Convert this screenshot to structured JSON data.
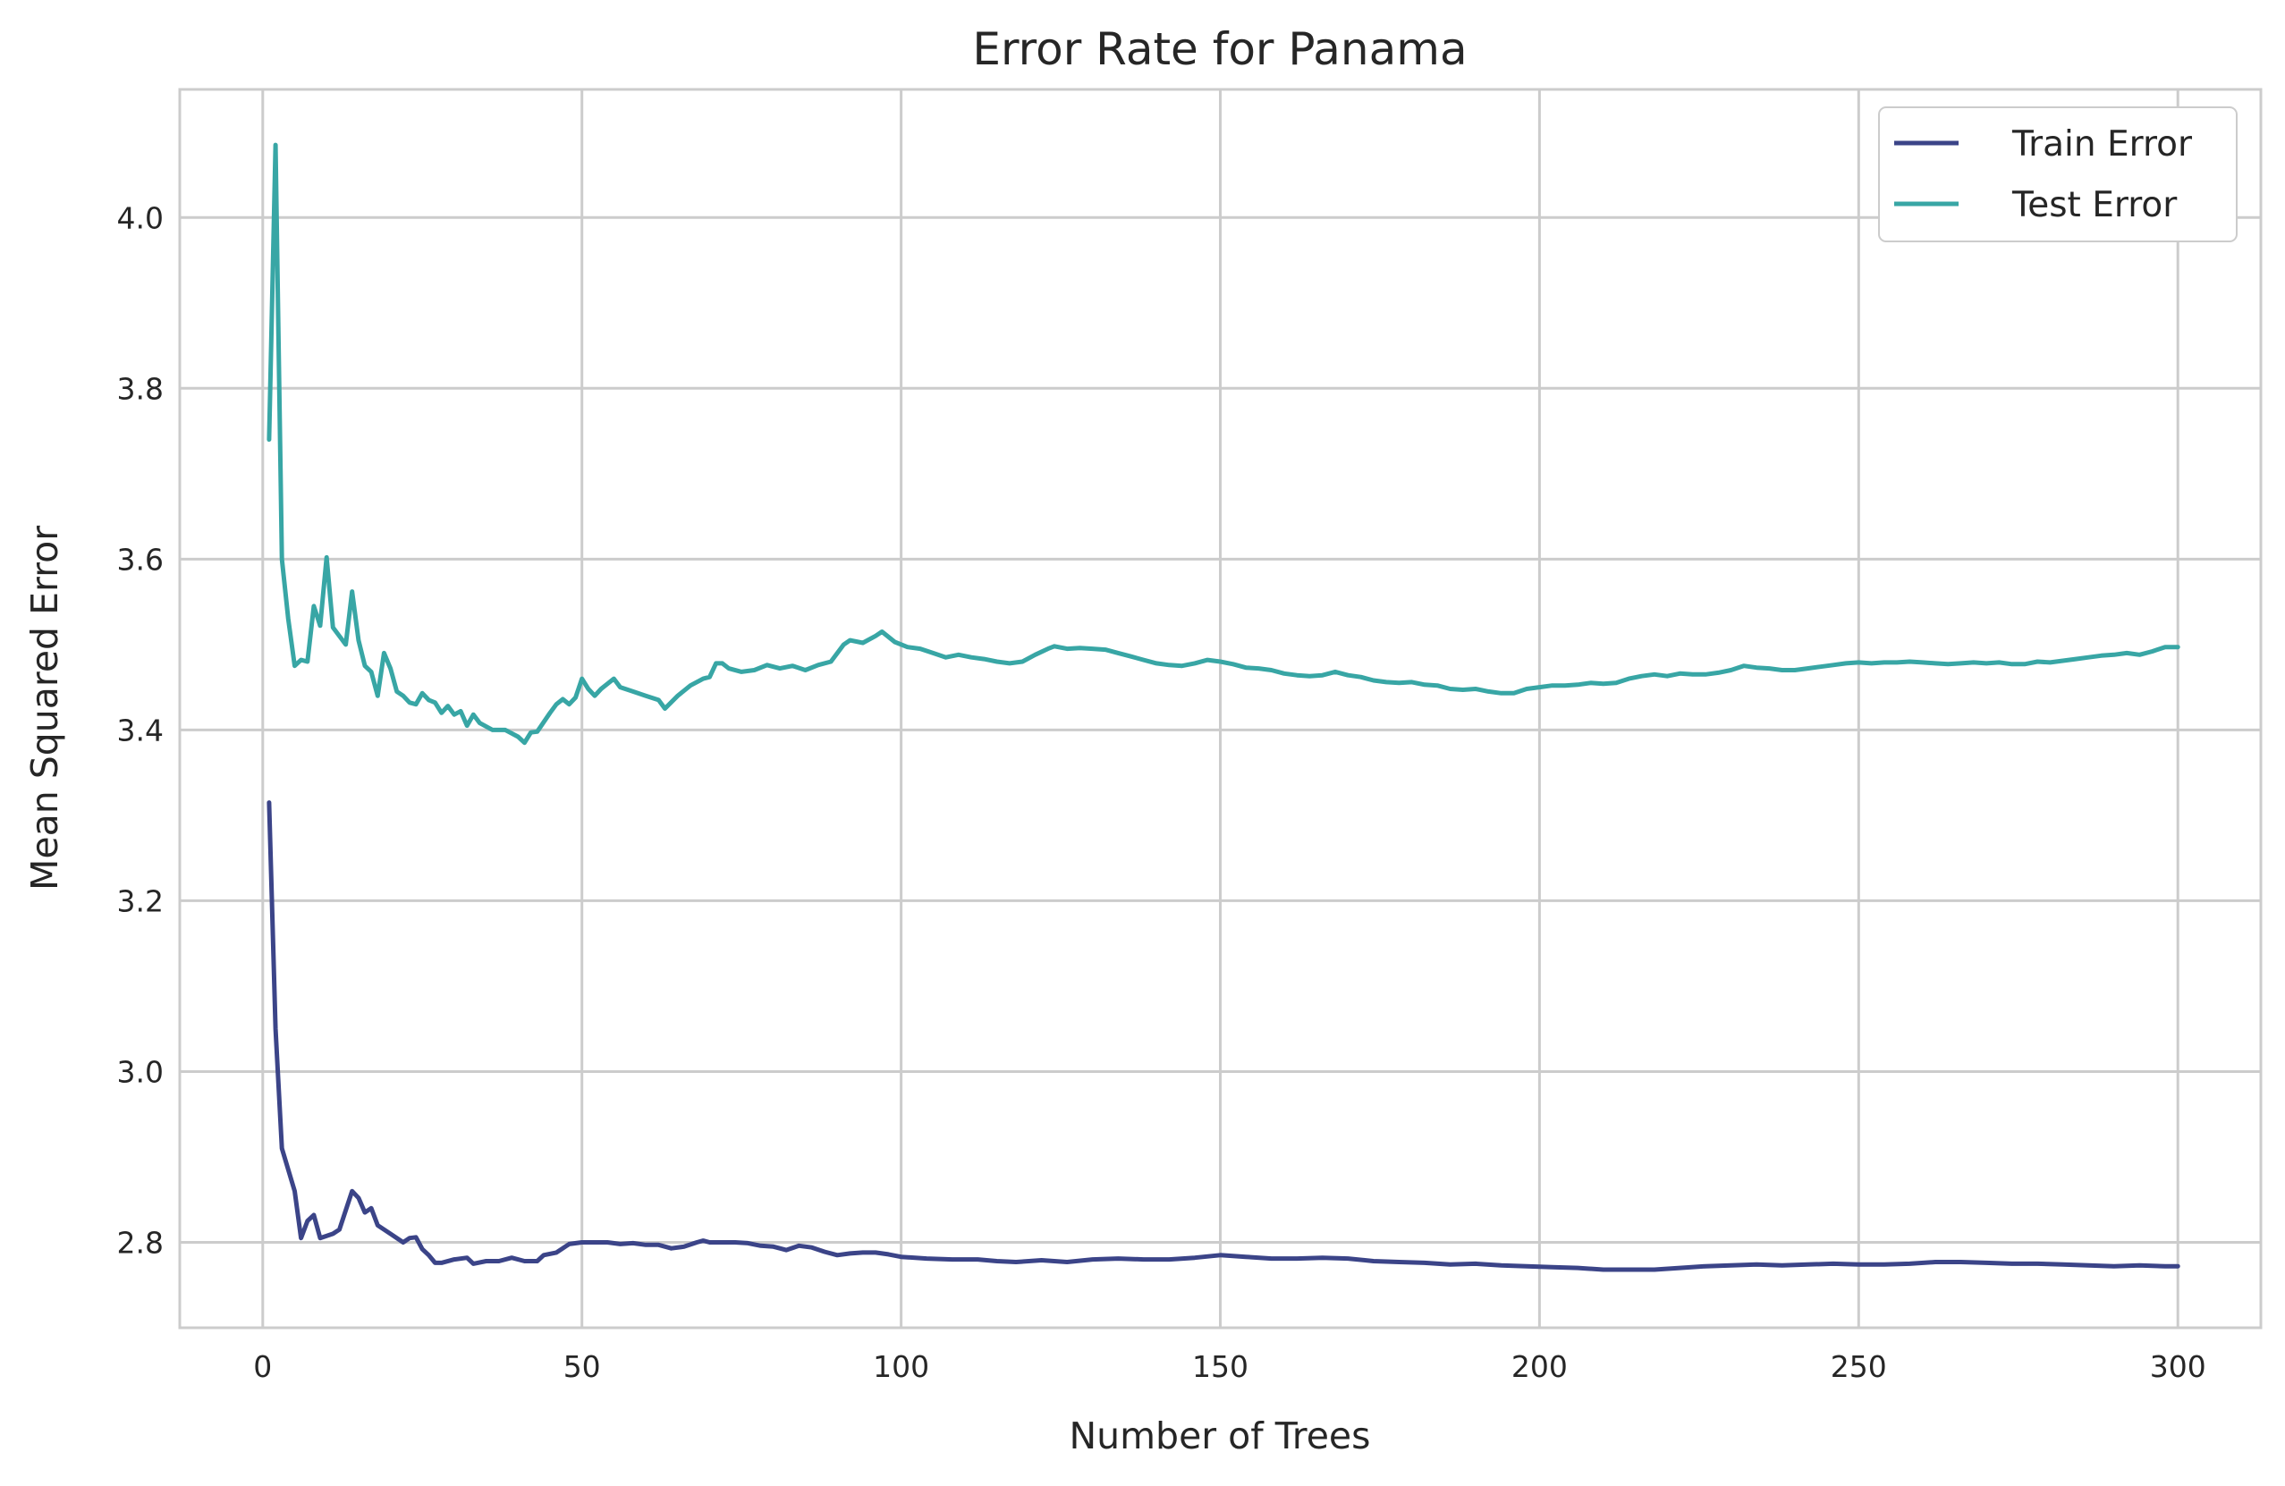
{
  "chart_data": {
    "type": "line",
    "title": "Error Rate for Panama",
    "xlabel": "Number of Trees",
    "ylabel": "Mean Squared Error",
    "xlim": [
      -13,
      313
    ],
    "ylim": [
      2.7,
      4.15
    ],
    "xticks": [
      0,
      50,
      100,
      150,
      200,
      250,
      300
    ],
    "xtick_labels": [
      "0",
      "50",
      "100",
      "150",
      "200",
      "250",
      "300"
    ],
    "yticks": [
      2.8,
      3.0,
      3.2,
      3.4,
      3.6,
      3.8,
      4.0
    ],
    "ytick_labels": [
      "2.8",
      "3.0",
      "3.2",
      "3.4",
      "3.6",
      "3.8",
      "4.0"
    ],
    "grid": true,
    "legend_position": "top-right",
    "series": [
      {
        "name": "Train Error",
        "color": "#3b4488",
        "points": [
          [
            1,
            3.315
          ],
          [
            2,
            3.05
          ],
          [
            3,
            2.91
          ],
          [
            5,
            2.86
          ],
          [
            6,
            2.805
          ],
          [
            7,
            2.825
          ],
          [
            8,
            2.832
          ],
          [
            9,
            2.805
          ],
          [
            11,
            2.81
          ],
          [
            12,
            2.815
          ],
          [
            14,
            2.86
          ],
          [
            15,
            2.852
          ],
          [
            16,
            2.835
          ],
          [
            17,
            2.84
          ],
          [
            18,
            2.82
          ],
          [
            20,
            2.81
          ],
          [
            22,
            2.8
          ],
          [
            23,
            2.805
          ],
          [
            24,
            2.806
          ],
          [
            25,
            2.792
          ],
          [
            26,
            2.785
          ],
          [
            27,
            2.776
          ],
          [
            28,
            2.776
          ],
          [
            30,
            2.78
          ],
          [
            32,
            2.782
          ],
          [
            33,
            2.775
          ],
          [
            35,
            2.778
          ],
          [
            37,
            2.778
          ],
          [
            39,
            2.782
          ],
          [
            41,
            2.778
          ],
          [
            43,
            2.778
          ],
          [
            44,
            2.785
          ],
          [
            46,
            2.788
          ],
          [
            48,
            2.798
          ],
          [
            50,
            2.8
          ],
          [
            52,
            2.8
          ],
          [
            54,
            2.8
          ],
          [
            56,
            2.798
          ],
          [
            58,
            2.799
          ],
          [
            60,
            2.797
          ],
          [
            62,
            2.797
          ],
          [
            64,
            2.793
          ],
          [
            66,
            2.795
          ],
          [
            68,
            2.8
          ],
          [
            69,
            2.802
          ],
          [
            70,
            2.8
          ],
          [
            72,
            2.8
          ],
          [
            74,
            2.8
          ],
          [
            76,
            2.799
          ],
          [
            78,
            2.796
          ],
          [
            80,
            2.795
          ],
          [
            82,
            2.791
          ],
          [
            84,
            2.796
          ],
          [
            86,
            2.794
          ],
          [
            88,
            2.789
          ],
          [
            90,
            2.785
          ],
          [
            92,
            2.787
          ],
          [
            94,
            2.788
          ],
          [
            96,
            2.788
          ],
          [
            98,
            2.786
          ],
          [
            100,
            2.783
          ],
          [
            104,
            2.781
          ],
          [
            108,
            2.78
          ],
          [
            112,
            2.78
          ],
          [
            115,
            2.778
          ],
          [
            118,
            2.777
          ],
          [
            122,
            2.779
          ],
          [
            126,
            2.777
          ],
          [
            130,
            2.78
          ],
          [
            134,
            2.781
          ],
          [
            138,
            2.78
          ],
          [
            142,
            2.78
          ],
          [
            146,
            2.782
          ],
          [
            150,
            2.785
          ],
          [
            154,
            2.783
          ],
          [
            158,
            2.781
          ],
          [
            162,
            2.781
          ],
          [
            166,
            2.782
          ],
          [
            170,
            2.781
          ],
          [
            174,
            2.778
          ],
          [
            178,
            2.777
          ],
          [
            182,
            2.776
          ],
          [
            186,
            2.774
          ],
          [
            190,
            2.775
          ],
          [
            194,
            2.773
          ],
          [
            198,
            2.772
          ],
          [
            202,
            2.771
          ],
          [
            206,
            2.77
          ],
          [
            210,
            2.768
          ],
          [
            214,
            2.768
          ],
          [
            218,
            2.768
          ],
          [
            222,
            2.77
          ],
          [
            226,
            2.772
          ],
          [
            230,
            2.773
          ],
          [
            234,
            2.774
          ],
          [
            238,
            2.773
          ],
          [
            242,
            2.774
          ],
          [
            246,
            2.775
          ],
          [
            250,
            2.774
          ],
          [
            254,
            2.774
          ],
          [
            258,
            2.775
          ],
          [
            262,
            2.777
          ],
          [
            266,
            2.777
          ],
          [
            270,
            2.776
          ],
          [
            274,
            2.775
          ],
          [
            278,
            2.775
          ],
          [
            282,
            2.774
          ],
          [
            286,
            2.773
          ],
          [
            290,
            2.772
          ],
          [
            294,
            2.773
          ],
          [
            298,
            2.772
          ],
          [
            300,
            2.772
          ]
        ]
      },
      {
        "name": "Test Error",
        "color": "#38a6a5",
        "points": [
          [
            1,
            3.74
          ],
          [
            2,
            4.085
          ],
          [
            3,
            3.6
          ],
          [
            4,
            3.53
          ],
          [
            5,
            3.475
          ],
          [
            6,
            3.482
          ],
          [
            7,
            3.48
          ],
          [
            8,
            3.545
          ],
          [
            9,
            3.522
          ],
          [
            10,
            3.602
          ],
          [
            11,
            3.52
          ],
          [
            13,
            3.5
          ],
          [
            14,
            3.562
          ],
          [
            15,
            3.505
          ],
          [
            16,
            3.475
          ],
          [
            17,
            3.468
          ],
          [
            18,
            3.44
          ],
          [
            19,
            3.49
          ],
          [
            20,
            3.472
          ],
          [
            21,
            3.445
          ],
          [
            22,
            3.44
          ],
          [
            23,
            3.432
          ],
          [
            24,
            3.43
          ],
          [
            25,
            3.443
          ],
          [
            26,
            3.435
          ],
          [
            27,
            3.432
          ],
          [
            28,
            3.42
          ],
          [
            29,
            3.428
          ],
          [
            30,
            3.418
          ],
          [
            31,
            3.422
          ],
          [
            32,
            3.405
          ],
          [
            33,
            3.418
          ],
          [
            34,
            3.408
          ],
          [
            36,
            3.4
          ],
          [
            38,
            3.4
          ],
          [
            40,
            3.392
          ],
          [
            41,
            3.385
          ],
          [
            42,
            3.397
          ],
          [
            43,
            3.398
          ],
          [
            45,
            3.42
          ],
          [
            46,
            3.43
          ],
          [
            47,
            3.436
          ],
          [
            48,
            3.43
          ],
          [
            49,
            3.438
          ],
          [
            50,
            3.46
          ],
          [
            51,
            3.448
          ],
          [
            52,
            3.44
          ],
          [
            53,
            3.448
          ],
          [
            55,
            3.46
          ],
          [
            56,
            3.45
          ],
          [
            58,
            3.445
          ],
          [
            60,
            3.44
          ],
          [
            62,
            3.435
          ],
          [
            63,
            3.425
          ],
          [
            65,
            3.44
          ],
          [
            67,
            3.452
          ],
          [
            69,
            3.46
          ],
          [
            70,
            3.462
          ],
          [
            71,
            3.478
          ],
          [
            72,
            3.478
          ],
          [
            73,
            3.472
          ],
          [
            75,
            3.468
          ],
          [
            77,
            3.47
          ],
          [
            79,
            3.476
          ],
          [
            81,
            3.472
          ],
          [
            83,
            3.475
          ],
          [
            85,
            3.47
          ],
          [
            87,
            3.476
          ],
          [
            89,
            3.48
          ],
          [
            91,
            3.5
          ],
          [
            92,
            3.505
          ],
          [
            94,
            3.502
          ],
          [
            96,
            3.51
          ],
          [
            97,
            3.515
          ],
          [
            99,
            3.503
          ],
          [
            101,
            3.497
          ],
          [
            103,
            3.495
          ],
          [
            105,
            3.49
          ],
          [
            107,
            3.485
          ],
          [
            109,
            3.488
          ],
          [
            111,
            3.485
          ],
          [
            113,
            3.483
          ],
          [
            115,
            3.48
          ],
          [
            117,
            3.478
          ],
          [
            119,
            3.48
          ],
          [
            121,
            3.488
          ],
          [
            123,
            3.495
          ],
          [
            124,
            3.498
          ],
          [
            126,
            3.495
          ],
          [
            128,
            3.496
          ],
          [
            130,
            3.495
          ],
          [
            132,
            3.494
          ],
          [
            134,
            3.49
          ],
          [
            136,
            3.486
          ],
          [
            138,
            3.482
          ],
          [
            140,
            3.478
          ],
          [
            142,
            3.476
          ],
          [
            144,
            3.475
          ],
          [
            146,
            3.478
          ],
          [
            148,
            3.482
          ],
          [
            150,
            3.48
          ],
          [
            152,
            3.477
          ],
          [
            154,
            3.473
          ],
          [
            156,
            3.472
          ],
          [
            158,
            3.47
          ],
          [
            160,
            3.466
          ],
          [
            162,
            3.464
          ],
          [
            164,
            3.463
          ],
          [
            166,
            3.464
          ],
          [
            168,
            3.468
          ],
          [
            170,
            3.464
          ],
          [
            172,
            3.462
          ],
          [
            174,
            3.458
          ],
          [
            176,
            3.456
          ],
          [
            178,
            3.455
          ],
          [
            180,
            3.456
          ],
          [
            182,
            3.453
          ],
          [
            184,
            3.452
          ],
          [
            186,
            3.448
          ],
          [
            188,
            3.447
          ],
          [
            190,
            3.448
          ],
          [
            192,
            3.445
          ],
          [
            194,
            3.443
          ],
          [
            196,
            3.443
          ],
          [
            198,
            3.448
          ],
          [
            200,
            3.45
          ],
          [
            202,
            3.452
          ],
          [
            204,
            3.452
          ],
          [
            206,
            3.453
          ],
          [
            208,
            3.455
          ],
          [
            210,
            3.454
          ],
          [
            212,
            3.455
          ],
          [
            214,
            3.46
          ],
          [
            216,
            3.463
          ],
          [
            218,
            3.465
          ],
          [
            220,
            3.463
          ],
          [
            222,
            3.466
          ],
          [
            224,
            3.465
          ],
          [
            226,
            3.465
          ],
          [
            228,
            3.467
          ],
          [
            230,
            3.47
          ],
          [
            232,
            3.475
          ],
          [
            234,
            3.473
          ],
          [
            236,
            3.472
          ],
          [
            238,
            3.47
          ],
          [
            240,
            3.47
          ],
          [
            242,
            3.472
          ],
          [
            244,
            3.474
          ],
          [
            246,
            3.476
          ],
          [
            248,
            3.478
          ],
          [
            250,
            3.479
          ],
          [
            252,
            3.478
          ],
          [
            254,
            3.479
          ],
          [
            256,
            3.479
          ],
          [
            258,
            3.48
          ],
          [
            260,
            3.479
          ],
          [
            262,
            3.478
          ],
          [
            264,
            3.477
          ],
          [
            266,
            3.478
          ],
          [
            268,
            3.479
          ],
          [
            270,
            3.478
          ],
          [
            272,
            3.479
          ],
          [
            274,
            3.477
          ],
          [
            276,
            3.477
          ],
          [
            278,
            3.48
          ],
          [
            280,
            3.479
          ],
          [
            282,
            3.481
          ],
          [
            284,
            3.483
          ],
          [
            286,
            3.485
          ],
          [
            288,
            3.487
          ],
          [
            290,
            3.488
          ],
          [
            292,
            3.49
          ],
          [
            294,
            3.488
          ],
          [
            296,
            3.492
          ],
          [
            298,
            3.497
          ],
          [
            300,
            3.497
          ]
        ]
      }
    ]
  }
}
